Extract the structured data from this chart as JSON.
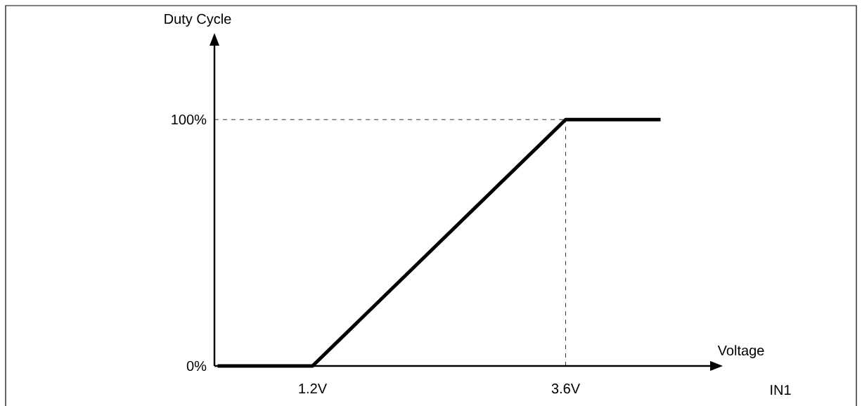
{
  "chart_data": {
    "type": "line",
    "xlabel": "Voltage",
    "ylabel": "Duty Cycle",
    "annotations": [
      "IN1"
    ],
    "x": [
      0.3,
      1.2,
      3.6,
      4.5
    ],
    "series": [
      {
        "color": "#000000",
        "values": [
          0,
          0,
          100,
          100
        ]
      }
    ],
    "xlim": [
      0.27,
      4.97
    ],
    "ylim": [
      0,
      130
    ],
    "xticks": [
      {
        "value": 1.2,
        "label": "1.2V"
      },
      {
        "value": 3.6,
        "label": "3.6V"
      }
    ],
    "yticks": [
      {
        "value": 0,
        "label": "0%"
      },
      {
        "value": 100,
        "label": "100%"
      }
    ],
    "ref_lines": [
      {
        "axis": "y",
        "value": 100,
        "line_style": "dashed"
      },
      {
        "axis": "x",
        "value": 3.6,
        "line_style": "dashed"
      }
    ],
    "line_style": "solid"
  }
}
